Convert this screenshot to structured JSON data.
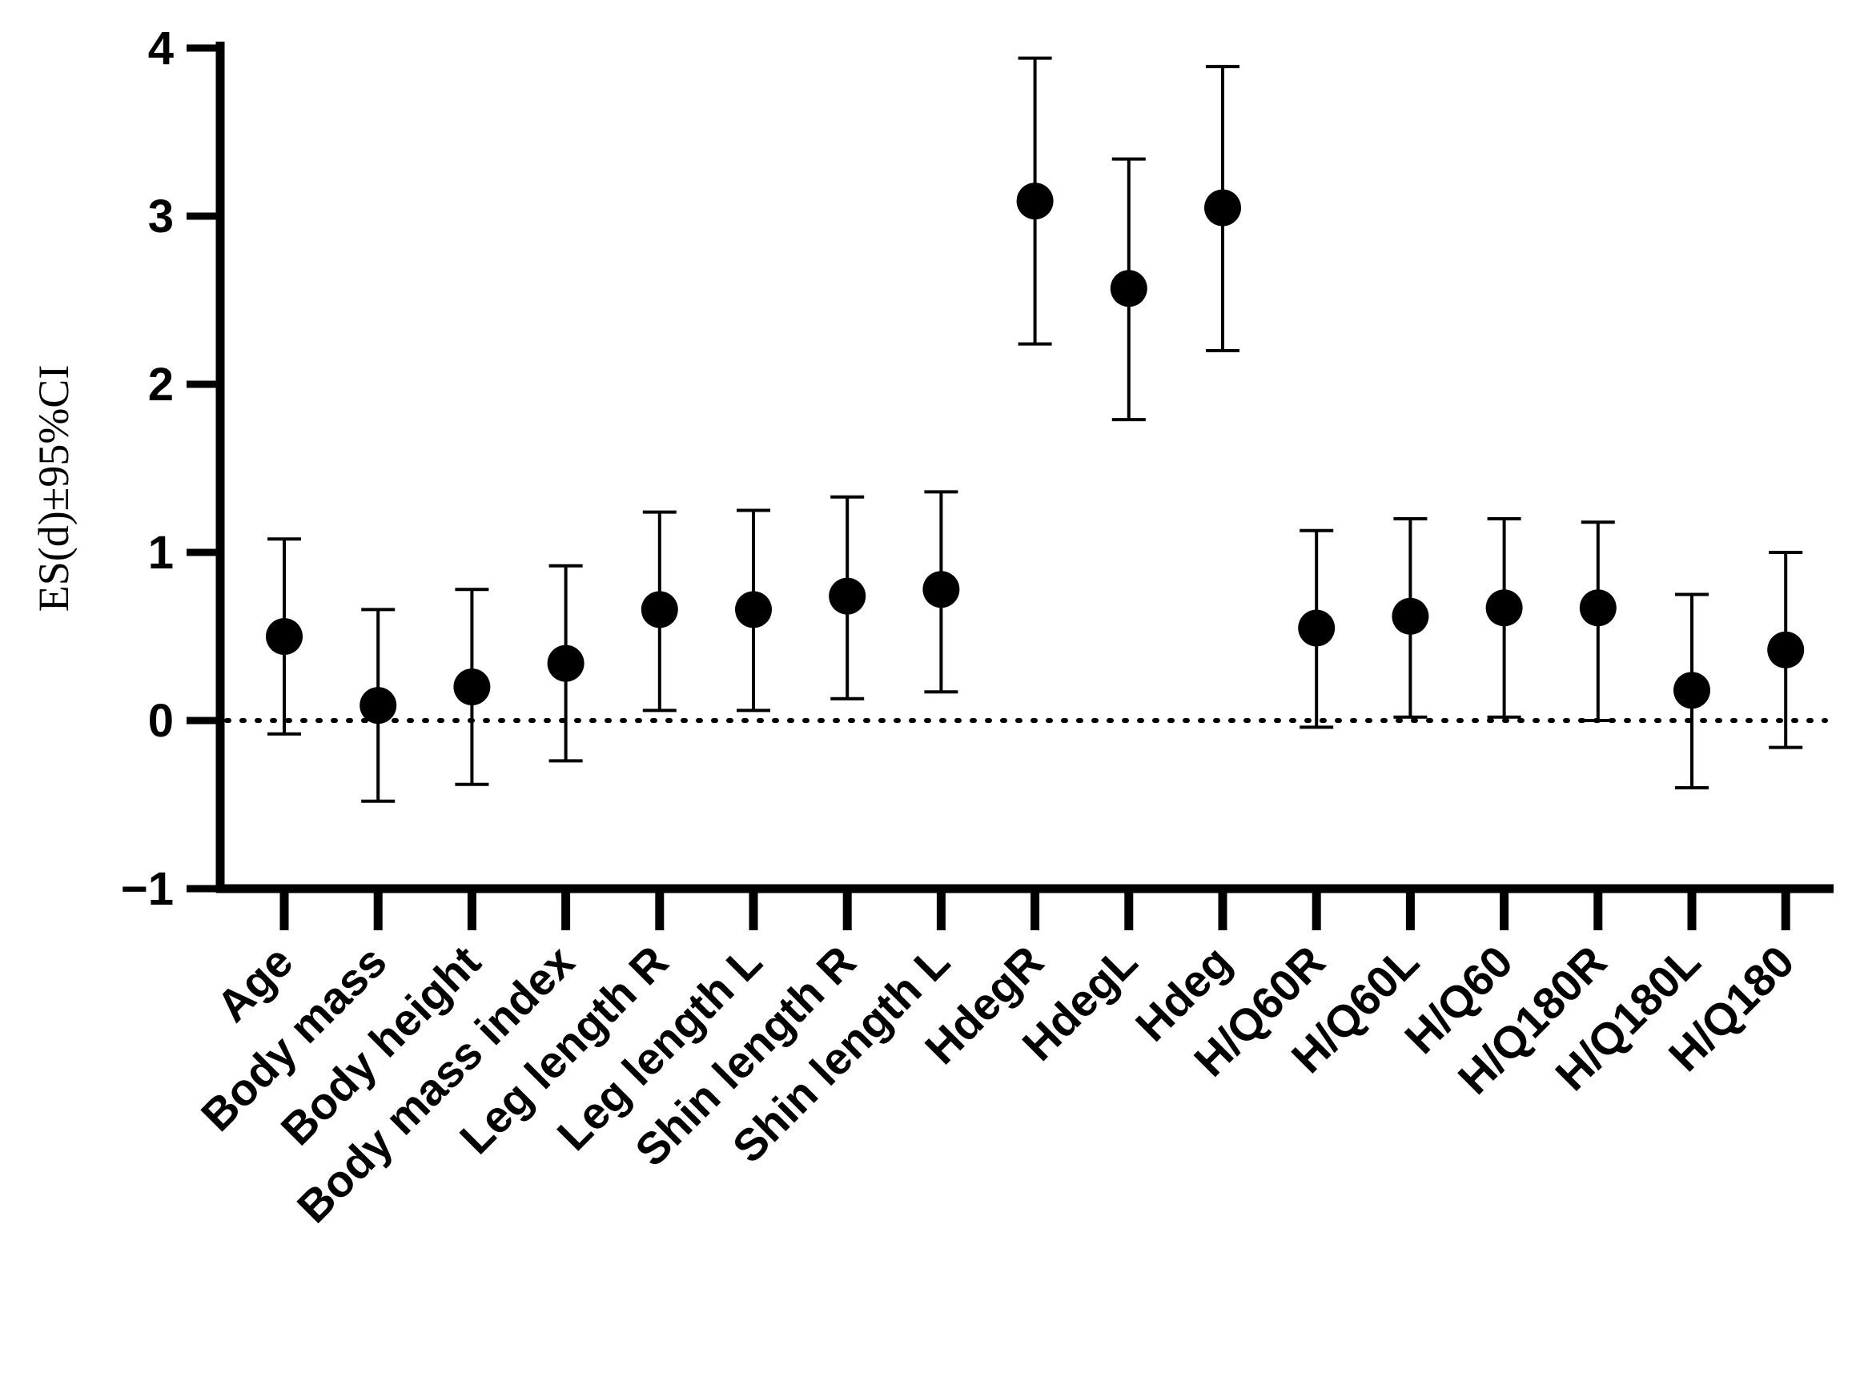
{
  "chart_data": {
    "type": "scatter",
    "title": "",
    "xlabel": "",
    "ylabel": "ES(d)±95%CI",
    "ylim": [
      -1,
      4
    ],
    "yticks": [
      -1,
      0,
      1,
      2,
      3,
      4
    ],
    "ytick_labels": [
      "−1",
      "0",
      "1",
      "2",
      "3",
      "4"
    ],
    "reference_line": 0,
    "categories": [
      "Age",
      "Body mass",
      "Body height",
      "Body mass index",
      "Leg length R",
      "Leg length L",
      "Shin length R",
      "Shin length L",
      "HdegR",
      "HdegL",
      "Hdeg",
      "H/Q60R",
      "H/Q60L",
      "H/Q60",
      "H/Q180R",
      "H/Q180L",
      "H/Q180"
    ],
    "values": [
      0.5,
      0.09,
      0.2,
      0.34,
      0.66,
      0.66,
      0.74,
      0.78,
      3.09,
      2.57,
      3.05,
      0.55,
      0.62,
      0.67,
      0.67,
      0.18,
      0.42
    ],
    "ci_lower": [
      -0.08,
      -0.48,
      -0.38,
      -0.24,
      0.06,
      0.06,
      0.13,
      0.17,
      2.24,
      1.79,
      2.2,
      -0.04,
      0.02,
      0.02,
      0.0,
      -0.4,
      -0.16
    ],
    "ci_upper": [
      1.08,
      0.66,
      0.78,
      0.92,
      1.24,
      1.25,
      1.33,
      1.36,
      3.94,
      3.34,
      3.89,
      1.13,
      1.2,
      1.2,
      1.18,
      0.75,
      1.0
    ],
    "colors": {
      "marker": "#000000",
      "axis": "#000000",
      "background": "#ffffff"
    }
  }
}
